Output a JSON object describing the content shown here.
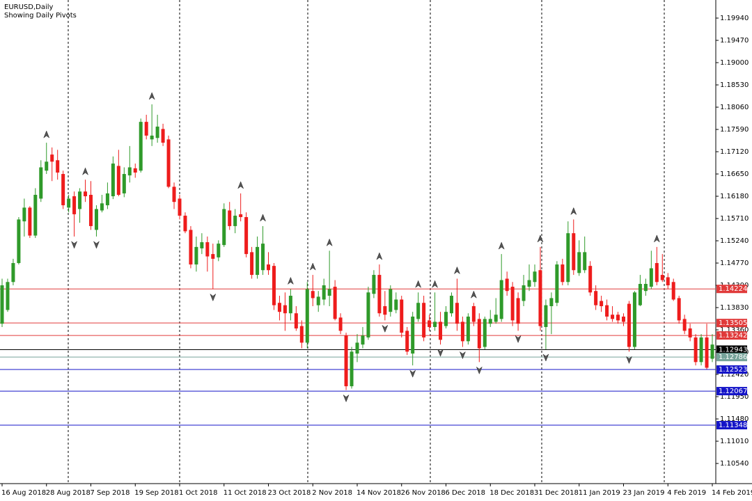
{
  "chart_data": {
    "type": "candlestick",
    "title": "EURUSD,Daily",
    "subtitle": "Showing Daily Pivots",
    "categories": [
      "16 Aug 2018",
      null,
      null,
      null,
      null,
      null,
      null,
      null,
      "28 Aug 2018",
      null,
      null,
      null,
      null,
      null,
      null,
      null,
      "7 Sep 2018",
      null,
      null,
      null,
      null,
      null,
      null,
      null,
      "19 Sep 2018",
      null,
      null,
      null,
      null,
      null,
      null,
      null,
      "1 Oct 2018",
      null,
      null,
      null,
      null,
      null,
      null,
      null,
      "11 Oct 2018",
      null,
      null,
      null,
      null,
      null,
      null,
      null,
      "23 Oct 2018",
      null,
      null,
      null,
      null,
      null,
      null,
      null,
      "2 Nov 2018",
      null,
      null,
      null,
      null,
      null,
      null,
      null,
      "14 Nov 2018",
      null,
      null,
      null,
      null,
      null,
      null,
      null,
      "26 Nov 2018",
      null,
      null,
      null,
      null,
      null,
      null,
      null,
      "6 Dec 2018",
      null,
      null,
      null,
      null,
      null,
      null,
      null,
      "18 Dec 2018",
      null,
      null,
      null,
      null,
      null,
      null,
      null,
      "31 Dec 2018",
      null,
      null,
      null,
      null,
      null,
      null,
      null,
      "11 Jan 2019",
      null,
      null,
      null,
      null,
      null,
      null,
      null,
      "23 Jan 2019",
      null,
      null,
      null,
      null,
      null,
      null,
      null,
      "4 Feb 2019",
      null,
      null,
      null,
      null,
      null,
      null,
      null,
      "14 Feb 2019"
    ],
    "open": [
      1.1349,
      1.1378,
      1.1437,
      1.1477,
      1.1565,
      1.1594,
      1.1535,
      1.1613,
      1.1672,
      1.1706,
      1.1694,
      1.1665,
      1.1594,
      1.1618,
      1.1591,
      1.1628,
      1.1621,
      1.1547,
      1.1588,
      1.1599,
      1.1618,
      1.1682,
      1.1624,
      1.1662,
      1.1677,
      1.1672,
      1.1775,
      1.1738,
      1.1741,
      1.176,
      1.1738,
      1.1638,
      1.1613,
      1.1577,
      1.1547,
      1.1474,
      1.1508,
      1.1521,
      1.1496,
      1.1489,
      1.1515,
      1.1588,
      1.1555,
      1.158,
      1.1574,
      1.15,
      1.1452,
      1.1462,
      1.1474,
      1.1471,
      1.1393,
      1.1388,
      1.1371,
      1.1371,
      1.1344,
      1.1309,
      1.1418,
      1.1388,
      1.14,
      1.1408,
      1.1427,
      1.1362,
      1.1324,
      1.1217,
      1.1286,
      1.1305,
      1.132,
      1.1412,
      1.1452,
      1.1386,
      1.1374,
      1.1378,
      1.14,
      1.1334,
      1.1286,
      1.1359,
      1.1393,
      1.1356,
      1.1342,
      1.1353,
      1.1344,
      1.1371,
      1.1393,
      1.1353,
      1.1312,
      1.1386,
      1.1359,
      1.13,
      1.1349,
      1.1353,
      1.1359,
      1.1444,
      1.1427,
      1.1403,
      1.1397,
      1.1427,
      1.1437,
      1.1462,
      1.1342,
      1.1386,
      1.1393,
      1.1474,
      1.1437,
      1.154,
      1.1456,
      1.1462,
      1.1471,
      1.1418,
      1.1397,
      1.1388,
      1.1368,
      1.1368,
      1.1364,
      1.1391,
      1.13,
      1.1388,
      1.1418,
      1.1427,
      1.1477,
      1.1452,
      1.1447,
      1.1437,
      1.1403,
      1.1359,
      1.1339,
      1.132,
      1.1268,
      1.132,
      1.1275
    ],
    "high": [
      1.1444,
      1.1444,
      1.1486,
      1.1574,
      1.1613,
      1.1597,
      1.1635,
      1.1694,
      1.1731,
      1.1721,
      1.1716,
      1.1672,
      1.1621,
      1.1628,
      1.1635,
      1.1653,
      1.165,
      1.1599,
      1.1621,
      1.1647,
      1.1702,
      1.1716,
      1.1679,
      1.1724,
      1.1687,
      1.1782,
      1.179,
      1.1812,
      1.179,
      1.1771,
      1.1746,
      1.1647,
      1.1621,
      1.1584,
      1.1555,
      1.1533,
      1.154,
      1.1533,
      1.1518,
      1.1525,
      1.1603,
      1.1606,
      1.1591,
      1.1624,
      1.1584,
      1.1511,
      1.1533,
      1.1555,
      1.15,
      1.1477,
      1.1408,
      1.1415,
      1.1422,
      1.1386,
      1.1356,
      1.1437,
      1.1452,
      1.1418,
      1.1444,
      1.1503,
      1.1441,
      1.1371,
      1.133,
      1.13,
      1.1327,
      1.1342,
      1.1427,
      1.1462,
      1.1474,
      1.1418,
      1.143,
      1.1415,
      1.1408,
      1.1342,
      1.1374,
      1.1415,
      1.1408,
      1.1368,
      1.1415,
      1.1374,
      1.1386,
      1.1415,
      1.1444,
      1.1364,
      1.1371,
      1.1393,
      1.1371,
      1.1364,
      1.1378,
      1.1403,
      1.1496,
      1.1459,
      1.1437,
      1.1415,
      1.1452,
      1.1474,
      1.1474,
      1.1511,
      1.14,
      1.1415,
      1.1481,
      1.1486,
      1.1565,
      1.1569,
      1.1525,
      1.1533,
      1.1481,
      1.143,
      1.1408,
      1.14,
      1.1386,
      1.1374,
      1.1371,
      1.1397,
      1.1418,
      1.1452,
      1.1444,
      1.1503,
      1.1511,
      1.1496,
      1.1456,
      1.1444,
      1.1408,
      1.1368,
      1.1349,
      1.1327,
      1.1327,
      1.1349,
      1.1327
    ],
    "low": [
      1.1342,
      1.1374,
      1.143,
      1.1474,
      1.1533,
      1.153,
      1.153,
      1.1606,
      1.1665,
      1.165,
      1.1653,
      1.1591,
      1.1584,
      1.1533,
      1.1562,
      1.1606,
      1.1547,
      1.1533,
      1.1584,
      1.1591,
      1.1612,
      1.1618,
      1.1616,
      1.1647,
      1.1657,
      1.1668,
      1.1738,
      1.1724,
      1.1731,
      1.1724,
      1.1635,
      1.1591,
      1.1569,
      1.154,
      1.1466,
      1.1459,
      1.1496,
      1.1459,
      1.1422,
      1.1481,
      1.1511,
      1.1547,
      1.154,
      1.1565,
      1.1489,
      1.1444,
      1.1444,
      1.1452,
      1.1452,
      1.1378,
      1.1356,
      1.1334,
      1.1356,
      1.1334,
      1.1297,
      1.1297,
      1.1386,
      1.1374,
      1.1388,
      1.1386,
      1.1356,
      1.1327,
      1.1209,
      1.1212,
      1.1268,
      1.1297,
      1.1315,
      1.1403,
      1.1364,
      1.1356,
      1.1364,
      1.1371,
      1.132,
      1.1283,
      1.1261,
      1.1353,
      1.1312,
      1.1334,
      1.1334,
      1.1305,
      1.1339,
      1.1364,
      1.1334,
      1.13,
      1.1305,
      1.1344,
      1.1268,
      1.1295,
      1.1342,
      1.1349,
      1.1353,
      1.1408,
      1.1344,
      1.1334,
      1.1386,
      1.1418,
      1.1427,
      1.1334,
      1.1295,
      1.1327,
      1.1386,
      1.143,
      1.143,
      1.1452,
      1.145,
      1.1456,
      1.1408,
      1.1378,
      1.1374,
      1.1356,
      1.1353,
      1.1349,
      1.1344,
      1.129,
      1.1295,
      1.1386,
      1.1408,
      1.1422,
      1.143,
      1.1437,
      1.1422,
      1.1397,
      1.1349,
      1.1327,
      1.1312,
      1.1261,
      1.1261,
      1.1253,
      1.1268
    ],
    "close": [
      1.143,
      1.1437,
      1.1477,
      1.1569,
      1.1594,
      1.1535,
      1.1621,
      1.1679,
      1.1691,
      1.1691,
      1.1668,
      1.1599,
      1.1613,
      1.158,
      1.1628,
      1.1618,
      1.1555,
      1.1591,
      1.1603,
      1.1624,
      1.1687,
      1.1621,
      1.1665,
      1.1679,
      1.1668,
      1.1775,
      1.1746,
      1.1746,
      1.1765,
      1.1731,
      1.1638,
      1.1606,
      1.1577,
      1.1544,
      1.1474,
      1.1511,
      1.1521,
      1.1491,
      1.1486,
      1.1518,
      1.1591,
      1.1555,
      1.1577,
      1.1574,
      1.1496,
      1.1452,
      1.1511,
      1.1518,
      1.1462,
      1.1388,
      1.1374,
      1.1371,
      1.1408,
      1.1339,
      1.1309,
      1.1422,
      1.1403,
      1.1406,
      1.143,
      1.1422,
      1.1359,
      1.1334,
      1.1217,
      1.129,
      1.1309,
      1.1324,
      1.1415,
      1.1452,
      1.1371,
      1.1368,
      1.1422,
      1.14,
      1.133,
      1.129,
      1.1364,
      1.1393,
      1.132,
      1.1342,
      1.1353,
      1.1315,
      1.1374,
      1.1408,
      1.1349,
      1.1312,
      1.1364,
      1.1353,
      1.1297,
      1.1359,
      1.1359,
      1.1368,
      1.1441,
      1.1418,
      1.1356,
      1.1349,
      1.143,
      1.1441,
      1.1459,
      1.1344,
      1.1388,
      1.1403,
      1.1474,
      1.1437,
      1.154,
      1.1462,
      1.15,
      1.15,
      1.1415,
      1.1388,
      1.1386,
      1.1364,
      1.1359,
      1.1356,
      1.1353,
      1.13,
      1.1415,
      1.1433,
      1.1433,
      1.1466,
      1.1437,
      1.1441,
      1.143,
      1.14,
      1.1356,
      1.1334,
      1.132,
      1.1268,
      1.132,
      1.1256,
      1.1305
    ],
    "up_color": "#2f9a2a",
    "down_color": "#ee1c1c",
    "ylim": [
      1.10115,
      1.20322
    ],
    "yticks": [
      {
        "value": 1.1994,
        "label": "1.19940"
      },
      {
        "value": 1.1947,
        "label": "1.19470"
      },
      {
        "value": 1.19,
        "label": "1.19000"
      },
      {
        "value": 1.1853,
        "label": "1.18530"
      },
      {
        "value": 1.1806,
        "label": "1.18060"
      },
      {
        "value": 1.1759,
        "label": "1.17590"
      },
      {
        "value": 1.1712,
        "label": "1.17120"
      },
      {
        "value": 1.1665,
        "label": "1.16650"
      },
      {
        "value": 1.1618,
        "label": "1.16180"
      },
      {
        "value": 1.1571,
        "label": "1.15710"
      },
      {
        "value": 1.1524,
        "label": "1.15240"
      },
      {
        "value": 1.1477,
        "label": "1.14770"
      },
      {
        "value": 1.143,
        "label": "1.14300"
      },
      {
        "value": 1.1383,
        "label": "1.13830"
      },
      {
        "value": 1.1336,
        "label": "1.13360"
      },
      {
        "value": 1.1289,
        "label": "1.12890"
      },
      {
        "value": 1.1242,
        "label": "1.12420"
      },
      {
        "value": 1.1195,
        "label": "1.11950"
      },
      {
        "value": 1.1148,
        "label": "1.11480"
      },
      {
        "value": 1.1101,
        "label": "1.11010"
      },
      {
        "value": 1.1054,
        "label": "1.10540"
      }
    ],
    "levels": [
      {
        "value": 1.14224,
        "color": "#e03a3a"
      },
      {
        "value": 1.13505,
        "color": "#e03a3a"
      },
      {
        "value": 1.13242,
        "color": "#e03a3a"
      },
      {
        "value": 1.12943,
        "color": "#000000"
      },
      {
        "value": 1.12786,
        "color": "#76a39a"
      },
      {
        "value": 1.12523,
        "color": "#1515c8"
      },
      {
        "value": 1.12067,
        "color": "#1515c8"
      },
      {
        "value": 1.11348,
        "color": "#1515c8"
      }
    ]
  }
}
